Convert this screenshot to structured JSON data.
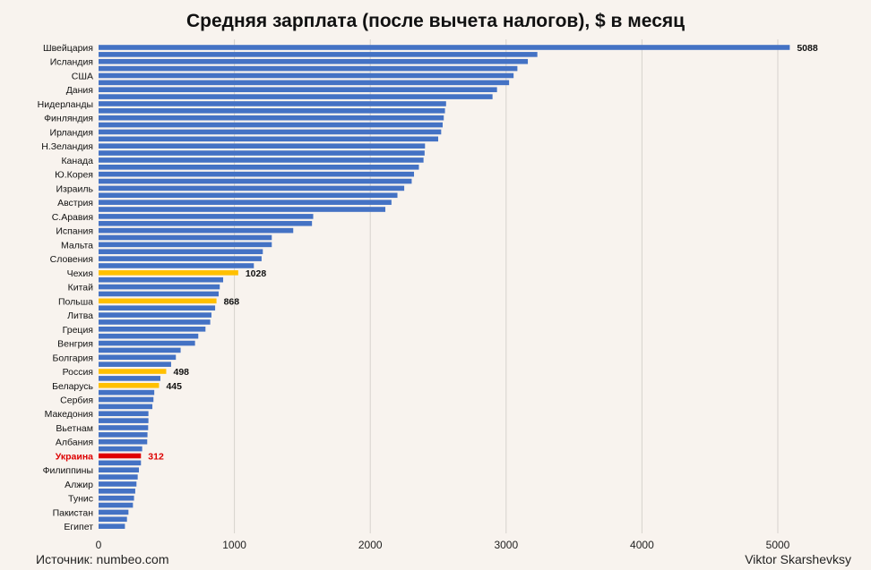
{
  "chart_data": {
    "type": "bar",
    "orientation": "horizontal",
    "title": "Средняя зарплата (после вычета налогов), $ в месяц",
    "xlabel": "",
    "ylabel": "",
    "xlim": [
      0,
      5200
    ],
    "xticks": [
      0,
      1000,
      2000,
      3000,
      4000,
      5000
    ],
    "grid": "vertical",
    "legend": "none",
    "colors": {
      "default": "#4472c4",
      "highlight": "#ffc000",
      "ukraine": "#e00000"
    },
    "categories": [
      "Швейцария",
      "",
      "Исландия",
      "",
      "США",
      "",
      "Дания",
      "",
      "Нидерланды",
      "",
      "Финляндия",
      "",
      "Ирландия",
      "",
      "Н.Зеландия",
      "",
      "Канада",
      "",
      "Ю.Корея",
      "",
      "Израиль",
      "",
      "Австрия",
      "",
      "С.Аравия",
      "",
      "Испания",
      "",
      "Мальта",
      "",
      "Словения",
      "",
      "Чехия",
      "",
      "Китай",
      "",
      "Польша",
      "",
      "Литва",
      "",
      "Греция",
      "",
      "Венгрия",
      "",
      "Болгария",
      "",
      "Россия",
      "",
      "Беларусь",
      "",
      "Сербия",
      "",
      "Македония",
      "",
      "Вьетнам",
      "",
      "Албания",
      "",
      "Украина",
      "",
      "Филиппины",
      "",
      "Алжир",
      "",
      "Тунис",
      "",
      "Пакистан",
      "",
      "Египет"
    ],
    "values": [
      5088,
      3230,
      3160,
      3083,
      3055,
      3022,
      2933,
      2900,
      2558,
      2550,
      2541,
      2533,
      2522,
      2500,
      2403,
      2400,
      2392,
      2358,
      2322,
      2305,
      2250,
      2200,
      2156,
      2111,
      1580,
      1571,
      1433,
      1275,
      1275,
      1209,
      1200,
      1143,
      1028,
      917,
      892,
      884,
      868,
      858,
      831,
      822,
      787,
      734,
      710,
      604,
      569,
      534,
      498,
      455,
      445,
      410,
      404,
      396,
      367,
      367,
      365,
      360,
      358,
      321,
      312,
      312,
      297,
      288,
      279,
      270,
      261,
      253,
      220,
      209,
      194
    ],
    "highlighted": {
      "Чехия": "highlight",
      "Польша": "highlight",
      "Россия": "highlight",
      "Беларусь": "highlight",
      "Украина": "ukraine"
    },
    "data_labels": {
      "Швейцария": "5088",
      "Чехия": "1028",
      "Польша": "868",
      "Россия": "498",
      "Беларусь": "445",
      "Украина": "312"
    }
  },
  "footer": {
    "source": "Источник: numbeo.com",
    "author": "Viktor Skarshevksy"
  }
}
